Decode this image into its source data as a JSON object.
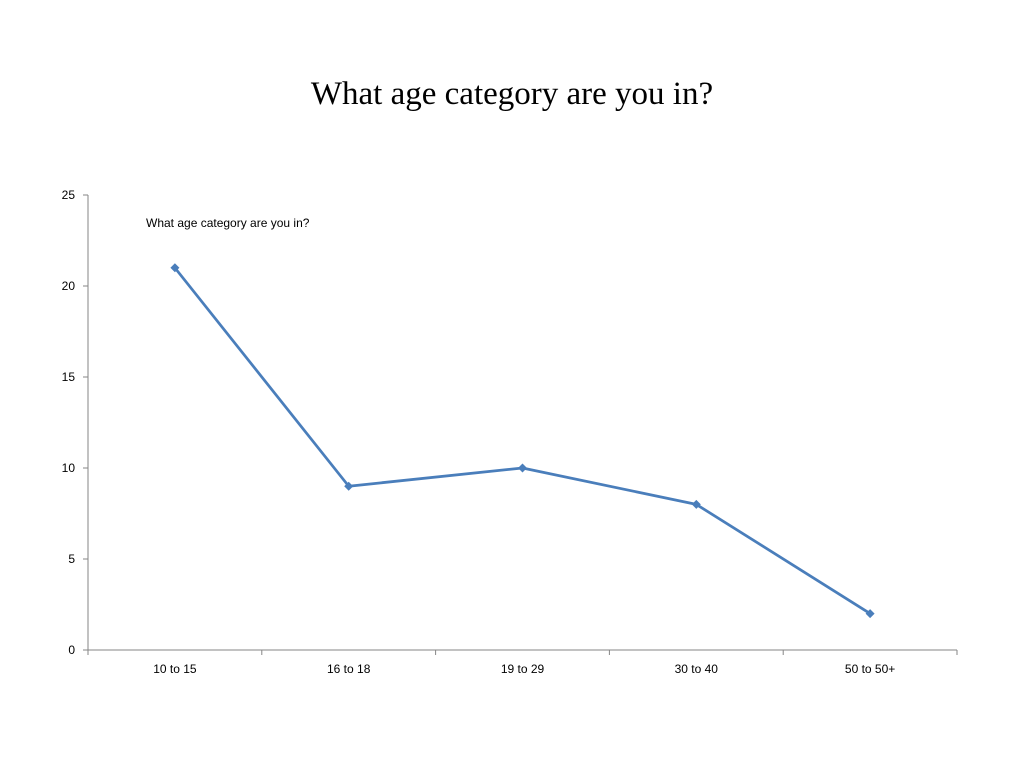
{
  "slide": {
    "title": "What age category are you in?"
  },
  "chart_data": {
    "type": "line",
    "categories": [
      "10 to 15",
      "16 to 18",
      "19 to 29",
      "30 to 40",
      "50 to 50+"
    ],
    "series": [
      {
        "name": "What age category are you in?",
        "values": [
          21,
          9,
          10,
          8,
          2
        ],
        "color": "#4a7ebb",
        "marker": "diamond"
      }
    ],
    "title": "",
    "xlabel": "",
    "ylabel": "",
    "ylim": [
      0,
      25
    ],
    "yticks": [
      0,
      5,
      10,
      15,
      20,
      25
    ],
    "grid": false,
    "legend": "top-left"
  }
}
